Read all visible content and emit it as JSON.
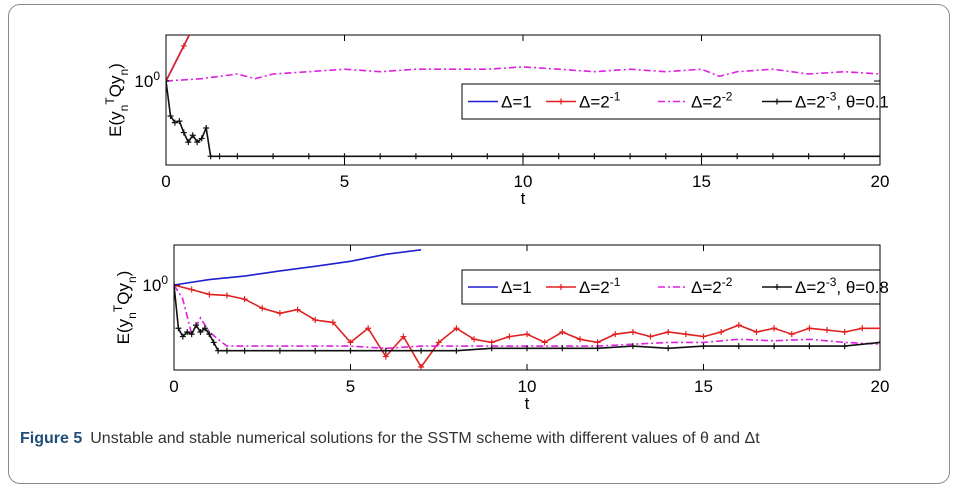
{
  "caption": {
    "label": "Figure 5",
    "text": "Unstable and stable numerical solutions for the SSTM scheme with different values of θ and Δt"
  },
  "chart_data": [
    {
      "type": "line",
      "xlabel": "t",
      "ylabel": "E(y_n^T Q y_n)",
      "ytick_label": "10^0",
      "xticks": [
        "0",
        "5",
        "10",
        "15",
        "20"
      ],
      "xlim": [
        0,
        20
      ],
      "y_scale": "log",
      "grid": false,
      "legend_position": "right, middle",
      "legend_suffix": "θ=0.1",
      "series": [
        {
          "name": "Δ=1",
          "color": "#1f1fd0",
          "marker": "none",
          "dash": "solid",
          "x": [
            0,
            1
          ],
          "y": [
            1,
            31.6
          ]
        },
        {
          "name": "Δ=2^-1",
          "color": "#e02020",
          "marker": "plus",
          "dash": "solid",
          "x": [
            0,
            0.5,
            1
          ],
          "y": [
            1,
            5.6,
            31.6
          ]
        },
        {
          "name": "Δ=2^-2",
          "color": "#e020e0",
          "marker": "none",
          "dash": "dashdot",
          "x": [
            0,
            1,
            1.5,
            2,
            2.5,
            3,
            4,
            5,
            6,
            7,
            8,
            9,
            10,
            11,
            12,
            13,
            14,
            15,
            15.5,
            16,
            17,
            18,
            19,
            20
          ],
          "y": [
            1,
            1.12,
            1.26,
            1.41,
            1.12,
            1.41,
            1.58,
            1.78,
            1.58,
            1.78,
            1.78,
            1.78,
            2.0,
            1.78,
            1.58,
            1.78,
            1.58,
            1.78,
            1.26,
            1.58,
            1.78,
            1.41,
            1.58,
            1.41
          ]
        },
        {
          "name": "Δ=2^-3",
          "color": "#111111",
          "marker": "plus",
          "dash": "solid",
          "x": [
            0,
            0.125,
            0.25,
            0.375,
            0.5,
            0.625,
            0.75,
            0.875,
            1.0,
            1.125,
            1.25,
            1.5,
            2,
            3,
            4,
            5,
            6,
            7,
            8,
            9,
            10,
            11,
            12,
            13,
            14,
            15,
            16,
            17,
            18,
            19,
            20
          ],
          "y": [
            1,
            0.18,
            0.13,
            0.14,
            0.08,
            0.05,
            0.07,
            0.05,
            0.06,
            0.1,
            0.025,
            0.025,
            0.025,
            0.025,
            0.025,
            0.025,
            0.025,
            0.025,
            0.025,
            0.025,
            0.025,
            0.025,
            0.025,
            0.025,
            0.025,
            0.025,
            0.025,
            0.025,
            0.025,
            0.025,
            0.025
          ]
        },
        {
          "name": "",
          "color": "#e02020",
          "marker": "plus",
          "dash": "solid",
          "x": [
            10,
            10
          ],
          "y": [
            20,
            31.6
          ]
        },
        {
          "name": "",
          "color": "#1f1fd0",
          "marker": "plus",
          "dash": "solid",
          "x": [
            12,
            12
          ],
          "y": [
            20,
            31.6
          ]
        }
      ]
    },
    {
      "type": "line",
      "xlabel": "t",
      "ylabel": "E(y_n^T Q y_n)",
      "ytick_label": "10^0",
      "xticks": [
        "0",
        "5",
        "10",
        "15",
        "20"
      ],
      "xlim": [
        0,
        20
      ],
      "y_scale": "log",
      "grid": false,
      "legend_position": "right, upper",
      "legend_suffix": "θ=0.8",
      "series": [
        {
          "name": "Δ=1",
          "color": "#1f1fd0",
          "marker": "none",
          "dash": "solid",
          "x": [
            0,
            1,
            2,
            3,
            4,
            5,
            6,
            7
          ],
          "y": [
            1,
            1.3,
            1.55,
            2.0,
            2.5,
            3.2,
            4.5,
            5.6
          ]
        },
        {
          "name": "Δ=2^-1",
          "color": "#e02020",
          "marker": "plus",
          "dash": "solid",
          "x": [
            0,
            0.5,
            1,
            1.5,
            2,
            2.5,
            3,
            3.5,
            4,
            4.5,
            5,
            5.5,
            6,
            6.5,
            7,
            7.5,
            8,
            8.5,
            9,
            9.5,
            10,
            10.5,
            11,
            11.5,
            12,
            12.5,
            13,
            13.5,
            14,
            14.5,
            15,
            15.5,
            16,
            16.5,
            17,
            17.5,
            18,
            18.5,
            19,
            19.5,
            20
          ],
          "y": [
            1,
            0.8,
            0.63,
            0.6,
            0.5,
            0.32,
            0.25,
            0.3,
            0.18,
            0.16,
            0.06,
            0.12,
            0.03,
            0.08,
            0.018,
            0.06,
            0.12,
            0.07,
            0.06,
            0.08,
            0.09,
            0.06,
            0.1,
            0.07,
            0.06,
            0.09,
            0.1,
            0.08,
            0.1,
            0.09,
            0.08,
            0.1,
            0.14,
            0.1,
            0.12,
            0.09,
            0.12,
            0.11,
            0.1,
            0.12,
            0.12
          ]
        },
        {
          "name": "Δ=2^-2",
          "color": "#e020e0",
          "marker": "none",
          "dash": "dashdot",
          "x": [
            0,
            0.25,
            0.5,
            0.75,
            1,
            1.25,
            1.5,
            2,
            3,
            4,
            5,
            6,
            7,
            8,
            9,
            10,
            11,
            12,
            13,
            14,
            15,
            16,
            17,
            18,
            19,
            20
          ],
          "y": [
            1,
            0.5,
            0.09,
            0.2,
            0.1,
            0.07,
            0.05,
            0.05,
            0.05,
            0.05,
            0.05,
            0.045,
            0.05,
            0.05,
            0.05,
            0.05,
            0.05,
            0.05,
            0.055,
            0.06,
            0.06,
            0.07,
            0.065,
            0.07,
            0.06,
            0.055
          ]
        },
        {
          "name": "Δ=2^-3",
          "color": "#111111",
          "marker": "plus",
          "dash": "solid",
          "x": [
            0,
            0.125,
            0.25,
            0.375,
            0.5,
            0.625,
            0.75,
            0.875,
            1.0,
            1.125,
            1.25,
            1.5,
            2,
            3,
            4,
            5,
            6,
            7,
            8,
            9,
            10,
            11,
            12,
            13,
            14,
            15,
            16,
            17,
            18,
            19,
            20
          ],
          "y": [
            1,
            0.12,
            0.08,
            0.1,
            0.09,
            0.14,
            0.1,
            0.12,
            0.09,
            0.06,
            0.04,
            0.04,
            0.04,
            0.04,
            0.04,
            0.04,
            0.04,
            0.04,
            0.04,
            0.045,
            0.045,
            0.045,
            0.045,
            0.05,
            0.045,
            0.05,
            0.05,
            0.05,
            0.05,
            0.05,
            0.06
          ]
        }
      ]
    }
  ]
}
